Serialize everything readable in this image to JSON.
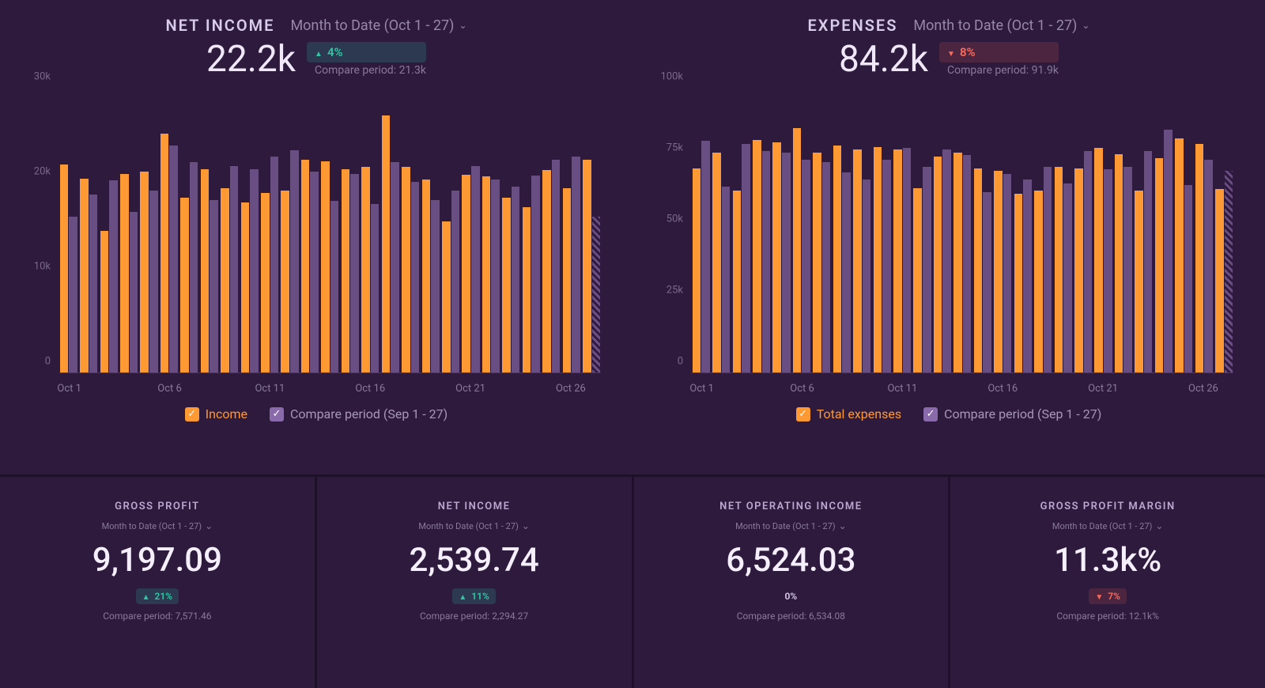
{
  "colors": {
    "background": "#2d1a3d",
    "primary_bar": "#ff9933",
    "compare_bar": "#8a6aaa",
    "text_primary": "#f0e8f8",
    "text_muted": "#8a7a9a",
    "axis_line": "#4a3a5a",
    "delta_up": "#2ec8a6",
    "delta_down": "#ff6b5a"
  },
  "charts": [
    {
      "title": "NET INCOME",
      "period": "Month to Date (Oct 1 - 27)",
      "value": "22.2k",
      "delta_direction": "up",
      "delta_text": "4%",
      "compare_text": "Compare period: 21.3k",
      "type": "bar",
      "ylim": [
        0,
        30000
      ],
      "yticks": [
        0,
        10000,
        20000,
        30000
      ],
      "ytick_labels": [
        "0",
        "10k",
        "20k",
        "30k"
      ],
      "x_categories": [
        "Oct 1",
        "Oct 2",
        "Oct 3",
        "Oct 4",
        "Oct 5",
        "Oct 6",
        "Oct 7",
        "Oct 8",
        "Oct 9",
        "Oct 10",
        "Oct 11",
        "Oct 12",
        "Oct 13",
        "Oct 14",
        "Oct 15",
        "Oct 16",
        "Oct 17",
        "Oct 18",
        "Oct 19",
        "Oct 20",
        "Oct 21",
        "Oct 22",
        "Oct 23",
        "Oct 24",
        "Oct 25",
        "Oct 26",
        "Oct 27"
      ],
      "x_major_ticks": [
        0,
        5,
        10,
        15,
        20,
        25
      ],
      "x_major_labels": [
        "Oct 1",
        "Oct 6",
        "Oct 11",
        "Oct 16",
        "Oct 21",
        "Oct 26"
      ],
      "primary_values": [
        22000,
        20500,
        15000,
        21000,
        21200,
        25200,
        18500,
        21500,
        19500,
        18000,
        19000,
        19200,
        22500,
        22300,
        21500,
        21700,
        27200,
        21700,
        20400,
        16000,
        20900,
        20700,
        18500,
        17500,
        21400,
        19500,
        22500
      ],
      "compare_values": [
        16500,
        18800,
        20300,
        17000,
        19200,
        24000,
        22200,
        18200,
        21800,
        21500,
        22800,
        23500,
        21200,
        18100,
        21000,
        17800,
        22200,
        20100,
        18200,
        19200,
        21800,
        20400,
        19600,
        20800,
        22500,
        22800,
        16500
      ],
      "compare_last_hatched": true,
      "legend": {
        "primary": "Income",
        "compare": "Compare period (Sep 1 - 27)"
      }
    },
    {
      "title": "EXPENSES",
      "period": "Month to Date (Oct 1 - 27)",
      "value": "84.2k",
      "delta_direction": "down",
      "delta_text": "8%",
      "compare_text": "Compare period: 91.9k",
      "type": "bar",
      "ylim": [
        0,
        100000
      ],
      "yticks": [
        0,
        25000,
        50000,
        75000,
        100000
      ],
      "ytick_labels": [
        "0",
        "25k",
        "50k",
        "75k",
        "100k"
      ],
      "x_categories": [
        "Oct 1",
        "Oct 2",
        "Oct 3",
        "Oct 4",
        "Oct 5",
        "Oct 6",
        "Oct 7",
        "Oct 8",
        "Oct 9",
        "Oct 10",
        "Oct 11",
        "Oct 12",
        "Oct 13",
        "Oct 14",
        "Oct 15",
        "Oct 16",
        "Oct 17",
        "Oct 18",
        "Oct 19",
        "Oct 20",
        "Oct 21",
        "Oct 22",
        "Oct 23",
        "Oct 24",
        "Oct 25",
        "Oct 26",
        "Oct 27"
      ],
      "x_major_ticks": [
        0,
        5,
        10,
        15,
        20,
        25
      ],
      "x_major_labels": [
        "Oct 1",
        "Oct 6",
        "Oct 11",
        "Oct 16",
        "Oct 21",
        "Oct 26"
      ],
      "primary_values": [
        72000,
        77500,
        64000,
        82000,
        81000,
        86000,
        77500,
        80000,
        78500,
        79500,
        78500,
        65000,
        76000,
        77500,
        72000,
        71000,
        63000,
        64000,
        72500,
        72000,
        79000,
        77000,
        64000,
        75500,
        82500,
        80500,
        64500
      ],
      "compare_values": [
        81500,
        65500,
        80500,
        78000,
        77500,
        75000,
        74000,
        70500,
        68000,
        75000,
        79000,
        72500,
        78500,
        76500,
        63500,
        70000,
        68000,
        72500,
        66500,
        78000,
        71500,
        72500,
        78000,
        85500,
        66000,
        75000,
        71000
      ],
      "compare_last_hatched": true,
      "legend": {
        "primary": "Total expenses",
        "compare": "Compare period (Sep 1 - 27)"
      }
    }
  ],
  "stats": [
    {
      "title": "GROSS PROFIT",
      "period": "Month to Date (Oct 1 - 27)",
      "value": "9,197.09",
      "delta_direction": "up",
      "delta_text": "21%",
      "compare_text": "Compare period: 7,571.46"
    },
    {
      "title": "NET INCOME",
      "period": "Month to Date (Oct 1 - 27)",
      "value": "2,539.74",
      "delta_direction": "up",
      "delta_text": "11%",
      "compare_text": "Compare period: 2,294.27"
    },
    {
      "title": "NET OPERATING INCOME",
      "period": "Month to Date (Oct 1 - 27)",
      "value": "6,524.03",
      "delta_direction": "neutral",
      "delta_text": "0%",
      "compare_text": "Compare period: 6,534.08"
    },
    {
      "title": "GROSS PROFIT MARGIN",
      "period": "Month to Date (Oct 1 - 27)",
      "value": "11.3k%",
      "delta_direction": "down",
      "delta_text": "7%",
      "compare_text": "Compare period: 12.1k%"
    }
  ]
}
